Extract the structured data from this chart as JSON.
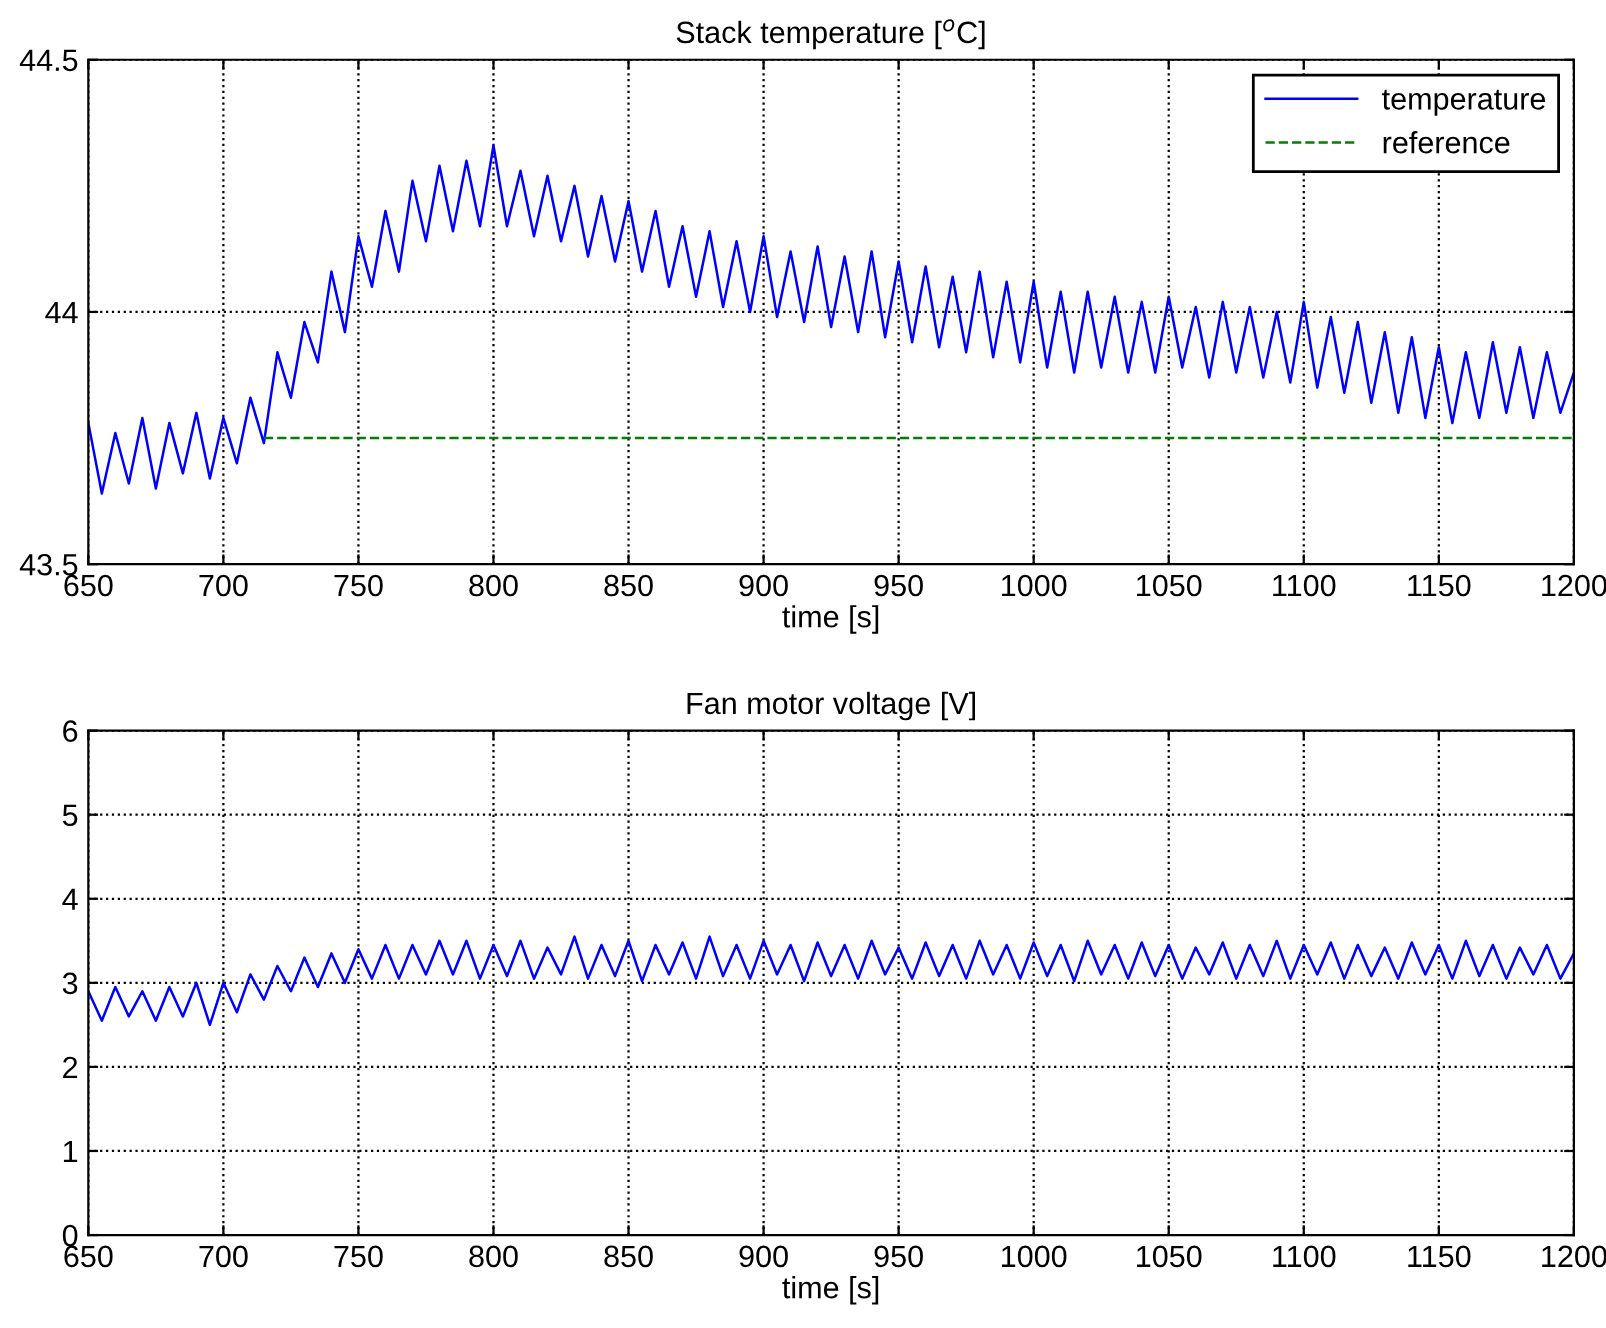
{
  "chart_data": [
    {
      "type": "line",
      "title": "Stack temperature [$^{o}$C]",
      "xlabel": "time [s]",
      "xlim": [
        650,
        1200
      ],
      "xticks": [
        650,
        700,
        750,
        800,
        850,
        900,
        950,
        1000,
        1050,
        1100,
        1150,
        1200
      ],
      "ylim": [
        43.5,
        44.5
      ],
      "yticks": [
        43.5,
        44,
        44.5
      ],
      "grid": true,
      "legend": "top right",
      "series": [
        {
          "name": "temperature",
          "color": "#0000ff",
          "line_style": "solid",
          "x": [
            650,
            655,
            660,
            665,
            670,
            675,
            680,
            685,
            690,
            695,
            700,
            705,
            710,
            715,
            720,
            725,
            730,
            735,
            740,
            745,
            750,
            755,
            760,
            765,
            770,
            775,
            780,
            785,
            790,
            795,
            800,
            805,
            810,
            815,
            820,
            825,
            830,
            835,
            840,
            845,
            850,
            855,
            860,
            865,
            870,
            875,
            880,
            885,
            890,
            895,
            900,
            905,
            910,
            915,
            920,
            925,
            930,
            935,
            940,
            945,
            950,
            955,
            960,
            965,
            970,
            975,
            980,
            985,
            990,
            995,
            1000,
            1005,
            1010,
            1015,
            1020,
            1025,
            1030,
            1035,
            1040,
            1045,
            1050,
            1055,
            1060,
            1065,
            1070,
            1075,
            1080,
            1085,
            1090,
            1095,
            1100,
            1105,
            1110,
            1115,
            1120,
            1125,
            1130,
            1135,
            1140,
            1145,
            1150,
            1155,
            1160,
            1165,
            1170,
            1175,
            1180,
            1185,
            1190,
            1195,
            1200
          ],
          "values": [
            43.78,
            43.64,
            43.76,
            43.66,
            43.79,
            43.65,
            43.78,
            43.68,
            43.8,
            43.67,
            43.79,
            43.7,
            43.83,
            43.74,
            43.92,
            43.83,
            43.98,
            43.9,
            44.08,
            43.96,
            44.15,
            44.05,
            44.2,
            44.08,
            44.26,
            44.14,
            44.29,
            44.16,
            44.3,
            44.17,
            44.33,
            44.17,
            44.28,
            44.15,
            44.27,
            44.14,
            44.25,
            44.11,
            44.23,
            44.1,
            44.22,
            44.08,
            44.2,
            44.05,
            44.17,
            44.03,
            44.16,
            44.01,
            44.14,
            44.0,
            44.15,
            43.99,
            44.12,
            43.98,
            44.13,
            43.97,
            44.11,
            43.96,
            44.12,
            43.95,
            44.1,
            43.94,
            44.09,
            43.93,
            44.07,
            43.92,
            44.08,
            43.91,
            44.06,
            43.9,
            44.06,
            43.89,
            44.04,
            43.88,
            44.04,
            43.89,
            44.03,
            43.88,
            44.02,
            43.88,
            44.03,
            43.89,
            44.01,
            43.87,
            44.02,
            43.88,
            44.01,
            43.87,
            44.0,
            43.86,
            44.02,
            43.85,
            43.99,
            43.84,
            43.98,
            43.82,
            43.96,
            43.8,
            43.95,
            43.79,
            43.93,
            43.78,
            43.92,
            43.79,
            43.94,
            43.8,
            43.93,
            43.79,
            43.92,
            43.8,
            43.88
          ]
        },
        {
          "name": "reference",
          "color": "#008000",
          "line_style": "dashed",
          "x": [
            715,
            1200
          ],
          "values": [
            43.75,
            43.75
          ]
        }
      ]
    },
    {
      "type": "line",
      "title": "Fan motor voltage [V]",
      "xlabel": "time [s]",
      "xlim": [
        650,
        1200
      ],
      "xticks": [
        650,
        700,
        750,
        800,
        850,
        900,
        950,
        1000,
        1050,
        1100,
        1150,
        1200
      ],
      "ylim": [
        0,
        6
      ],
      "yticks": [
        0,
        1,
        2,
        3,
        4,
        5,
        6
      ],
      "grid": true,
      "series": [
        {
          "color": "#0000ff",
          "line_style": "solid",
          "x": [
            650,
            655,
            660,
            665,
            670,
            675,
            680,
            685,
            690,
            695,
            700,
            705,
            710,
            715,
            720,
            725,
            730,
            735,
            740,
            745,
            750,
            755,
            760,
            765,
            770,
            775,
            780,
            785,
            790,
            795,
            800,
            805,
            810,
            815,
            820,
            825,
            830,
            835,
            840,
            845,
            850,
            855,
            860,
            865,
            870,
            875,
            880,
            885,
            890,
            895,
            900,
            905,
            910,
            915,
            920,
            925,
            930,
            935,
            940,
            945,
            950,
            955,
            960,
            965,
            970,
            975,
            980,
            985,
            990,
            995,
            1000,
            1005,
            1010,
            1015,
            1020,
            1025,
            1030,
            1035,
            1040,
            1045,
            1050,
            1055,
            1060,
            1065,
            1070,
            1075,
            1080,
            1085,
            1090,
            1095,
            1100,
            1105,
            1110,
            1115,
            1120,
            1125,
            1130,
            1135,
            1140,
            1145,
            1150,
            1155,
            1160,
            1165,
            1170,
            1175,
            1180,
            1185,
            1190,
            1195,
            1200
          ],
          "values": [
            2.9,
            2.55,
            2.95,
            2.6,
            2.9,
            2.55,
            2.95,
            2.6,
            3.0,
            2.5,
            3.0,
            2.65,
            3.1,
            2.8,
            3.2,
            2.9,
            3.3,
            2.95,
            3.35,
            3.0,
            3.4,
            3.05,
            3.45,
            3.05,
            3.45,
            3.1,
            3.5,
            3.1,
            3.5,
            3.05,
            3.45,
            3.08,
            3.5,
            3.05,
            3.42,
            3.1,
            3.55,
            3.05,
            3.45,
            3.08,
            3.5,
            3.02,
            3.45,
            3.1,
            3.48,
            3.05,
            3.55,
            3.08,
            3.45,
            3.05,
            3.5,
            3.1,
            3.45,
            3.02,
            3.48,
            3.08,
            3.45,
            3.05,
            3.5,
            3.1,
            3.42,
            3.05,
            3.48,
            3.08,
            3.45,
            3.05,
            3.5,
            3.1,
            3.45,
            3.05,
            3.48,
            3.08,
            3.45,
            3.02,
            3.5,
            3.1,
            3.45,
            3.05,
            3.48,
            3.08,
            3.45,
            3.05,
            3.42,
            3.1,
            3.48,
            3.05,
            3.45,
            3.08,
            3.5,
            3.05,
            3.45,
            3.1,
            3.48,
            3.05,
            3.45,
            3.08,
            3.42,
            3.05,
            3.48,
            3.1,
            3.45,
            3.05,
            3.5,
            3.08,
            3.45,
            3.05,
            3.42,
            3.1,
            3.45,
            3.05,
            3.35
          ]
        }
      ]
    }
  ]
}
